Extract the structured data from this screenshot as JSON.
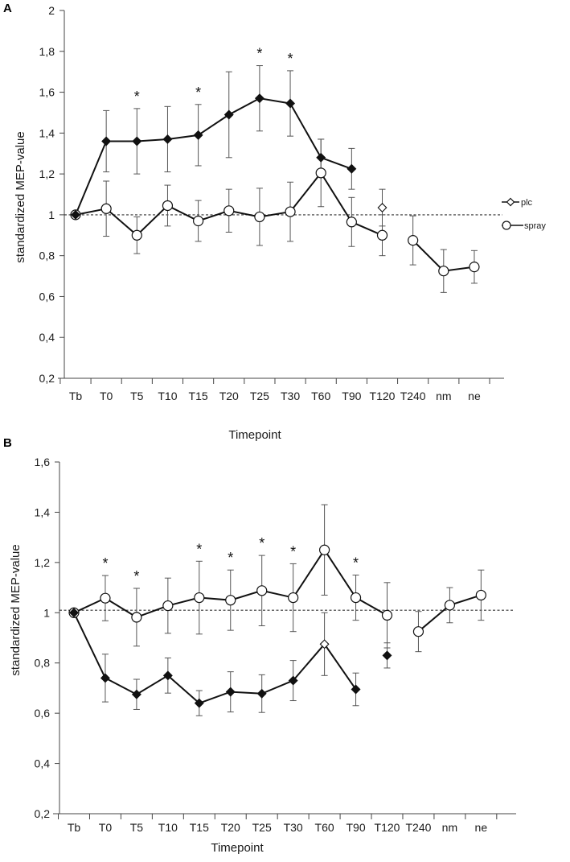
{
  "chart_data": [
    {
      "panel": "A",
      "type": "line",
      "xlabel": "Timepoint",
      "ylabel": "standardized MEP-value",
      "ylim": [
        0.2,
        2
      ],
      "yticks": [
        0.2,
        0.4,
        0.6,
        0.8,
        1,
        1.2,
        1.4,
        1.6,
        1.8,
        2
      ],
      "ytick_labels": [
        "0,2",
        "0,4",
        "0,6",
        "0,8",
        "1",
        "1,2",
        "1,4",
        "1,6",
        "1,8",
        "2"
      ],
      "categories": [
        "Tb",
        "T0",
        "T5",
        "T10",
        "T15",
        "T20",
        "T25",
        "T30",
        "T60",
        "T90",
        "T120",
        "T240",
        "nm",
        "ne"
      ],
      "reference_line": 1,
      "legend": [
        "plc",
        "spray"
      ],
      "significance_marker": "*",
      "significance_at": [
        "T5",
        "T15",
        "T25",
        "T30"
      ],
      "series": [
        {
          "name": "filled",
          "values": [
            1.0,
            1.36,
            1.36,
            1.37,
            1.39,
            1.49,
            1.57,
            1.545,
            1.28,
            1.225,
            1.035,
            null,
            null,
            null
          ],
          "errors": [
            0,
            0.15,
            0.16,
            0.16,
            0.15,
            0.21,
            0.16,
            0.16,
            0.09,
            0.1,
            0.09,
            null,
            null,
            null
          ],
          "markers": [
            "diamond-filled",
            "diamond-filled",
            "diamond-filled",
            "diamond-filled",
            "diamond-filled",
            "diamond-filled",
            "diamond-filled",
            "diamond-filled",
            "diamond-filled",
            "diamond-filled",
            "diamond-open",
            null,
            null,
            null
          ],
          "segments": [
            [
              0,
              9
            ]
          ]
        },
        {
          "name": "open",
          "values": [
            1.0,
            1.03,
            0.9,
            1.045,
            0.97,
            1.02,
            0.99,
            1.015,
            1.205,
            0.965,
            0.9,
            0.875,
            0.725,
            0.745
          ],
          "errors": [
            0,
            0.135,
            0.09,
            0.1,
            0.1,
            0.105,
            0.14,
            0.145,
            0.165,
            0.12,
            0.1,
            0.12,
            0.105,
            0.08
          ],
          "markers": [
            "circle-open",
            "circle-open",
            "circle-open",
            "circle-open",
            "circle-open",
            "circle-open",
            "circle-open",
            "circle-open",
            "circle-open",
            "circle-open",
            "circle-open",
            "circle-open",
            "circle-open",
            "circle-open"
          ],
          "segments": [
            [
              0,
              10
            ],
            [
              11,
              13
            ]
          ]
        }
      ]
    },
    {
      "panel": "B",
      "type": "line",
      "xlabel": "Timepoint",
      "ylabel": "standardized MEP-value",
      "ylim": [
        0.2,
        1.6
      ],
      "yticks": [
        0.2,
        0.4,
        0.6,
        0.8,
        1,
        1.2,
        1.4,
        1.6
      ],
      "ytick_labels": [
        "0,2",
        "0,4",
        "0,6",
        "0,8",
        "1",
        "1,2",
        "1,4",
        "1,6"
      ],
      "categories": [
        "Tb",
        "T0",
        "T5",
        "T10",
        "T15",
        "T20",
        "T25",
        "T30",
        "T60",
        "T90",
        "T120",
        "T240",
        "nm",
        "ne"
      ],
      "reference_line": 1.01,
      "significance_marker": "*",
      "significance_at": [
        "T0",
        "T5",
        "T15",
        "T20",
        "T25",
        "T30",
        "T90"
      ],
      "series": [
        {
          "name": "filled",
          "values": [
            1.0,
            0.74,
            0.675,
            0.75,
            0.64,
            0.685,
            0.678,
            0.73,
            0.875,
            0.695,
            0.83,
            null,
            null,
            null
          ],
          "errors": [
            0,
            0.095,
            0.06,
            0.07,
            0.05,
            0.08,
            0.075,
            0.08,
            0.125,
            0.065,
            0.05,
            null,
            null,
            null
          ],
          "markers": [
            "diamond-filled",
            "diamond-filled",
            "diamond-filled",
            "diamond-filled",
            "diamond-filled",
            "diamond-filled",
            "diamond-filled",
            "diamond-filled",
            "diamond-open",
            "diamond-filled",
            "diamond-filled",
            null,
            null,
            null
          ],
          "segments": [
            [
              0,
              9
            ]
          ]
        },
        {
          "name": "open",
          "values": [
            1.0,
            1.058,
            0.982,
            1.028,
            1.06,
            1.05,
            1.088,
            1.06,
            1.25,
            1.06,
            0.99,
            0.925,
            1.03,
            1.07
          ],
          "errors": [
            0,
            0.09,
            0.115,
            0.11,
            0.145,
            0.12,
            0.14,
            0.135,
            0.18,
            0.09,
            0.13,
            0.08,
            0.07,
            0.1
          ],
          "markers": [
            "circle-open",
            "circle-open",
            "circle-open",
            "circle-open",
            "circle-open",
            "circle-open",
            "circle-open",
            "circle-open",
            "circle-open",
            "circle-open",
            "circle-open",
            "circle-open",
            "circle-open",
            "circle-open"
          ],
          "segments": [
            [
              0,
              10
            ],
            [
              11,
              13
            ]
          ]
        }
      ]
    }
  ]
}
